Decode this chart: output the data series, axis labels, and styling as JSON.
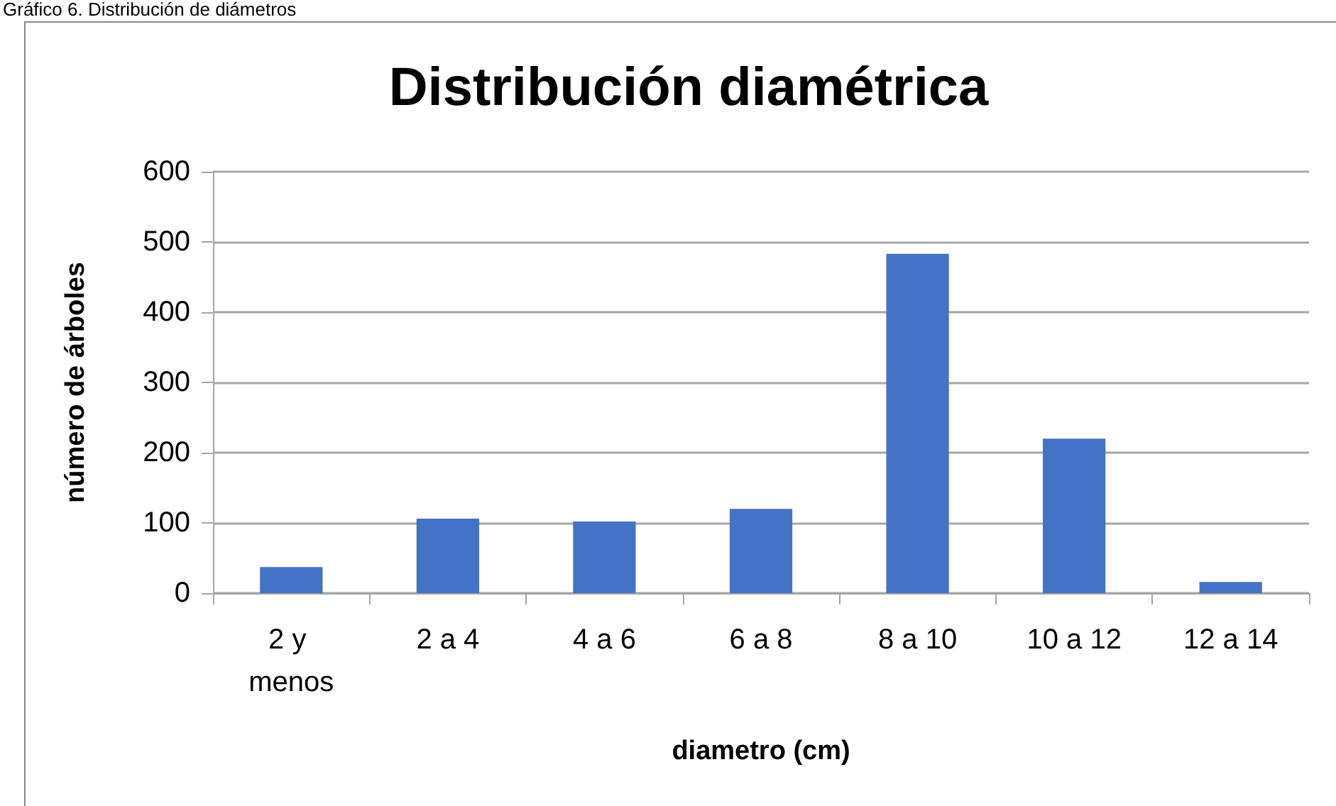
{
  "chart_data": {
    "type": "bar",
    "title": "Distribución diamétrica",
    "xlabel": "diametro (cm)",
    "ylabel": "número de árboles",
    "categories": [
      "2 y menos",
      "2 a 4",
      "4 a 6",
      "6 a 8",
      "8 a 10",
      "10 a 12",
      "12 a 14"
    ],
    "values": [
      37,
      106,
      102,
      120,
      483,
      220,
      16
    ],
    "color": "#4472c4",
    "ylim": [
      0,
      600
    ],
    "yticks": [
      0,
      100,
      200,
      300,
      400,
      500,
      600
    ],
    "grid": "y",
    "annotations": [
      "Gráfico 6. Distribución de diámetros"
    ]
  }
}
